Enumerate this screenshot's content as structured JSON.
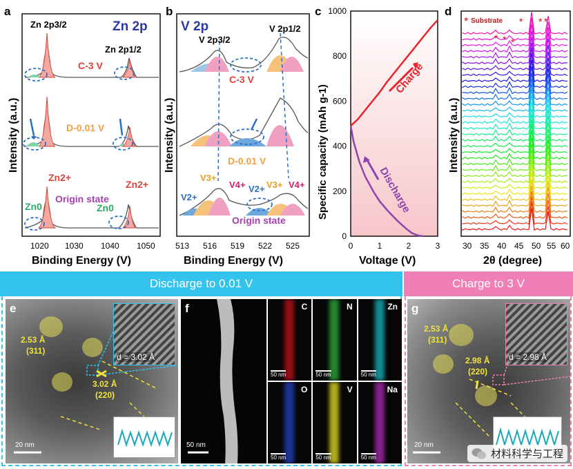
{
  "panels": {
    "a": {
      "letter": "a",
      "title": "Zn 2p",
      "peak_left": "Zn 2p3/2",
      "peak_right": "Zn 2p1/2",
      "states": [
        "C-3 V",
        "D-0.01 V",
        "Origin state"
      ],
      "zn2_label": "Zn2+",
      "zn0_label": "Zn0",
      "xlabel": "Binding Energy (V)",
      "ylabel": "Intensity (a.u.)",
      "xticks": [
        "1020",
        "1030",
        "1040",
        "1050"
      ]
    },
    "b": {
      "letter": "b",
      "title": "V 2p",
      "peak_left": "V 2p3/2",
      "peak_right": "V 2p1/2",
      "states": [
        "C-3 V",
        "D-0.01 V",
        "Origin state"
      ],
      "v_labels": [
        "V2+",
        "V3+",
        "V4+"
      ],
      "xlabel": "Binding Energy (V)",
      "ylabel": "Intensity (a.u.)",
      "xticks": [
        "513",
        "516",
        "519",
        "522",
        "525"
      ]
    },
    "c": {
      "letter": "c",
      "xlabel": "Voltage (V)",
      "ylabel": "Specific capacity (mAh g-1)",
      "charge_label": "Charge",
      "discharge_label": "Discharge",
      "xticks": [
        "0",
        "1",
        "2",
        "3"
      ],
      "yticks": [
        "0",
        "200",
        "400",
        "600",
        "800",
        "1000"
      ]
    },
    "d": {
      "letter": "d",
      "legend": "Substrate",
      "xlabel": "2θ (degree)",
      "ylabel": "Intensity (a.u.)",
      "xticks": [
        "30",
        "35",
        "40",
        "45",
        "50",
        "55",
        "60"
      ]
    }
  },
  "chart_data": [
    {
      "type": "line",
      "panel": "c",
      "xlabel": "Voltage (V)",
      "ylabel": "Specific capacity (mAh g-1)",
      "xlim": [
        0,
        3
      ],
      "ylim": [
        0,
        1000
      ],
      "series": [
        {
          "name": "Charge",
          "color": "#e8232a",
          "x": [
            0,
            0.25,
            0.5,
            0.75,
            1.0,
            1.25,
            1.5,
            1.75,
            2.0,
            2.25,
            2.5,
            2.75,
            3.0
          ],
          "values": [
            490,
            520,
            560,
            600,
            640,
            685,
            725,
            765,
            805,
            845,
            885,
            925,
            960
          ]
        },
        {
          "name": "Discharge",
          "color": "#8e44ad",
          "x": [
            0,
            0.1,
            0.3,
            0.5,
            0.8,
            1.0,
            1.3,
            1.6,
            1.9,
            2.1,
            2.3,
            2.5
          ],
          "values": [
            490,
            420,
            330,
            265,
            195,
            155,
            110,
            70,
            35,
            15,
            4,
            0
          ]
        }
      ]
    }
  ],
  "banners": {
    "discharge": "Discharge to 0.01 V",
    "charge": "Charge to 3 V"
  },
  "tem": {
    "e": {
      "letter": "e",
      "lattice1": "2.53 Å",
      "plane1": "(311)",
      "lattice2": "3.02 Å",
      "plane2": "(220)",
      "inset_d": "d = 3.02 Å",
      "scale": "20 nm"
    },
    "f": {
      "letter": "f",
      "scale": "50 nm",
      "maps": [
        {
          "element": "C",
          "color": "#c0121a"
        },
        {
          "element": "N",
          "color": "#2fae3a"
        },
        {
          "element": "Zn",
          "color": "#18b6c0"
        },
        {
          "element": "O",
          "color": "#2642c8"
        },
        {
          "element": "V",
          "color": "#e8e22a"
        },
        {
          "element": "Na",
          "color": "#b02ab8"
        }
      ],
      "map_scale": "50 nm"
    },
    "g": {
      "letter": "g",
      "lattice1": "2.53 Å",
      "plane1": "(311)",
      "lattice2": "2.98 Å",
      "plane2": "(220)",
      "inset_d": "d = 2.98 Å",
      "scale": "20 nm"
    }
  },
  "watermark": "材料科学与工程",
  "colors": {
    "cyan_banner": "#33c3ec",
    "pink_banner": "#f07fb5"
  }
}
